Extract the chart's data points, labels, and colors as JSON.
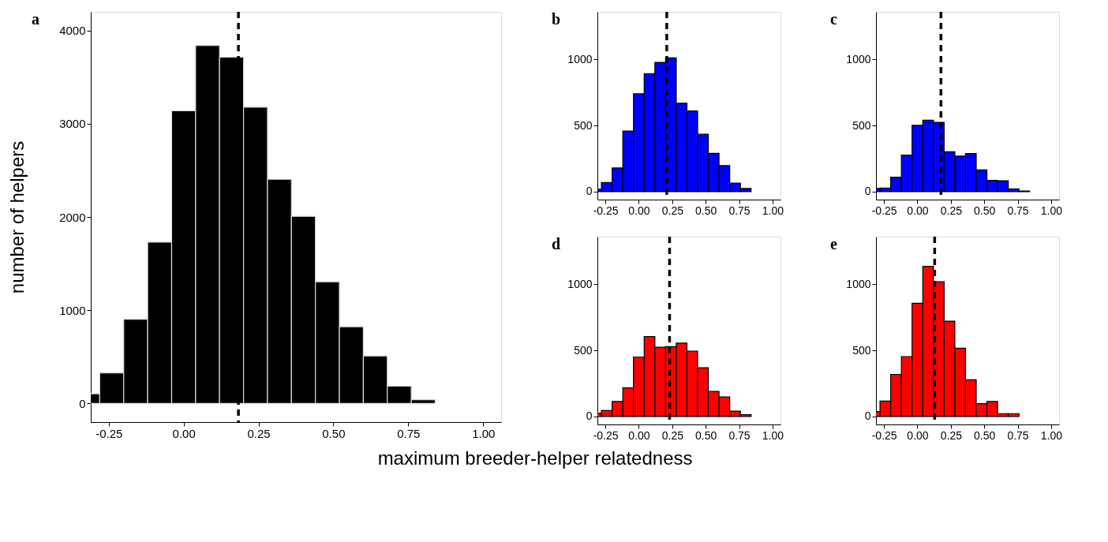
{
  "chart_data": [
    {
      "type": "histogram",
      "title": "a",
      "ylabel": "number of helpers",
      "xlabel": "maximum breeder-helper relatedness",
      "bins": [
        -0.36,
        -0.28,
        -0.2,
        -0.12,
        -0.04,
        0.04,
        0.12,
        0.2,
        0.28,
        0.36,
        0.44,
        0.52,
        0.6,
        0.68,
        0.76,
        0.84
      ],
      "values": [
        104,
        328,
        903,
        1730,
        3139,
        3839,
        3714,
        3178,
        2404,
        2007,
        1305,
        822,
        509,
        185,
        39
      ],
      "color": "#000000",
      "xlim": [
        -0.31,
        1.06
      ],
      "ylim": [
        -200,
        4200
      ],
      "xticks": [
        {
          "value": -0.25,
          "label": "-0.25"
        },
        {
          "value": 0,
          "label": "0.00"
        },
        {
          "value": 0.25,
          "label": "0.25"
        },
        {
          "value": 0.5,
          "label": "0.50"
        },
        {
          "value": 0.75,
          "label": "0.75"
        },
        {
          "value": 1,
          "label": "1.00"
        }
      ],
      "yticks": [
        0,
        1000,
        2000,
        3000,
        4000
      ],
      "grid": false,
      "ref_lines": [
        {
          "axis": "x",
          "value": 0.183,
          "color": "#000000",
          "line_style": "dashed"
        }
      ]
    },
    {
      "type": "histogram",
      "title": "b",
      "bins": [
        -0.36,
        -0.28,
        -0.2,
        -0.12,
        -0.04,
        0.04,
        0.12,
        0.2,
        0.28,
        0.36,
        0.44,
        0.52,
        0.6,
        0.68,
        0.76,
        0.84
      ],
      "values": [
        19,
        69,
        179,
        459,
        741,
        893,
        978,
        1012,
        669,
        610,
        434,
        290,
        197,
        64,
        24
      ],
      "color": "#0000ff",
      "xlim": [
        -0.31,
        1.06
      ],
      "ylim": [
        -60,
        1360
      ],
      "xticks": [
        {
          "value": -0.25,
          "label": "-0.25"
        },
        {
          "value": 0,
          "label": "0.00"
        },
        {
          "value": 0.25,
          "label": "0.25"
        },
        {
          "value": 0.5,
          "label": "0.50"
        },
        {
          "value": 0.75,
          "label": "0.75"
        },
        {
          "value": 1,
          "label": "1.00"
        }
      ],
      "yticks": [
        0,
        500,
        1000
      ],
      "grid": false,
      "ref_lines": [
        {
          "axis": "x",
          "value": 0.209,
          "color": "#000000",
          "line_style": "dashed"
        }
      ]
    },
    {
      "type": "histogram",
      "title": "c",
      "bins": [
        -0.36,
        -0.28,
        -0.2,
        -0.12,
        -0.04,
        0.04,
        0.12,
        0.2,
        0.28,
        0.36,
        0.44,
        0.52,
        0.6,
        0.68,
        0.76,
        0.84
      ],
      "values": [
        24,
        28,
        109,
        276,
        502,
        540,
        524,
        302,
        269,
        288,
        164,
        86,
        83,
        22,
        5
      ],
      "color": "#0000ff",
      "xlim": [
        -0.31,
        1.06
      ],
      "ylim": [
        -60,
        1360
      ],
      "xticks": [
        {
          "value": -0.25,
          "label": "-0.25"
        },
        {
          "value": 0,
          "label": "0.00"
        },
        {
          "value": 0.25,
          "label": "0.25"
        },
        {
          "value": 0.5,
          "label": "0.50"
        },
        {
          "value": 0.75,
          "label": "0.75"
        },
        {
          "value": 1,
          "label": "1.00"
        }
      ],
      "yticks": [
        0,
        500,
        1000
      ],
      "grid": false,
      "ref_lines": [
        {
          "axis": "x",
          "value": 0.176,
          "color": "#000000",
          "line_style": "dashed"
        }
      ]
    },
    {
      "type": "histogram",
      "title": "d",
      "bins": [
        -0.36,
        -0.28,
        -0.2,
        -0.12,
        -0.04,
        0.04,
        0.12,
        0.2,
        0.28,
        0.36,
        0.44,
        0.52,
        0.6,
        0.68,
        0.76,
        0.84
      ],
      "values": [
        24,
        45,
        114,
        217,
        450,
        605,
        524,
        529,
        555,
        495,
        369,
        190,
        148,
        41,
        14
      ],
      "color": "#ff0000",
      "xlim": [
        -0.31,
        1.06
      ],
      "ylim": [
        -60,
        1360
      ],
      "xticks": [
        {
          "value": -0.25,
          "label": "-0.25"
        },
        {
          "value": 0,
          "label": "0.00"
        },
        {
          "value": 0.25,
          "label": "0.25"
        },
        {
          "value": 0.5,
          "label": "0.50"
        },
        {
          "value": 0.75,
          "label": "0.75"
        },
        {
          "value": 1,
          "label": "1.00"
        }
      ],
      "yticks": [
        0,
        500,
        1000
      ],
      "grid": false,
      "ref_lines": [
        {
          "axis": "x",
          "value": 0.23,
          "color": "#000000",
          "line_style": "dashed"
        }
      ]
    },
    {
      "type": "histogram",
      "title": "e",
      "bins": [
        -0.36,
        -0.28,
        -0.2,
        -0.12,
        -0.04,
        0.04,
        0.12,
        0.2,
        0.28,
        0.36,
        0.44,
        0.52,
        0.6,
        0.68,
        0.76,
        0.84
      ],
      "values": [
        38,
        117,
        319,
        453,
        857,
        1136,
        1019,
        721,
        517,
        278,
        97,
        114,
        22,
        22,
        0
      ],
      "color": "#ff0000",
      "xlim": [
        -0.31,
        1.06
      ],
      "ylim": [
        -60,
        1360
      ],
      "xticks": [
        {
          "value": -0.25,
          "label": "-0.25"
        },
        {
          "value": 0,
          "label": "0.00"
        },
        {
          "value": 0.25,
          "label": "0.25"
        },
        {
          "value": 0.5,
          "label": "0.50"
        },
        {
          "value": 0.75,
          "label": "0.75"
        },
        {
          "value": 1,
          "label": "1.00"
        }
      ],
      "yticks": [
        0,
        500,
        1000
      ],
      "grid": false,
      "ref_lines": [
        {
          "axis": "x",
          "value": 0.129,
          "color": "#000000",
          "line_style": "dashed"
        }
      ]
    }
  ]
}
